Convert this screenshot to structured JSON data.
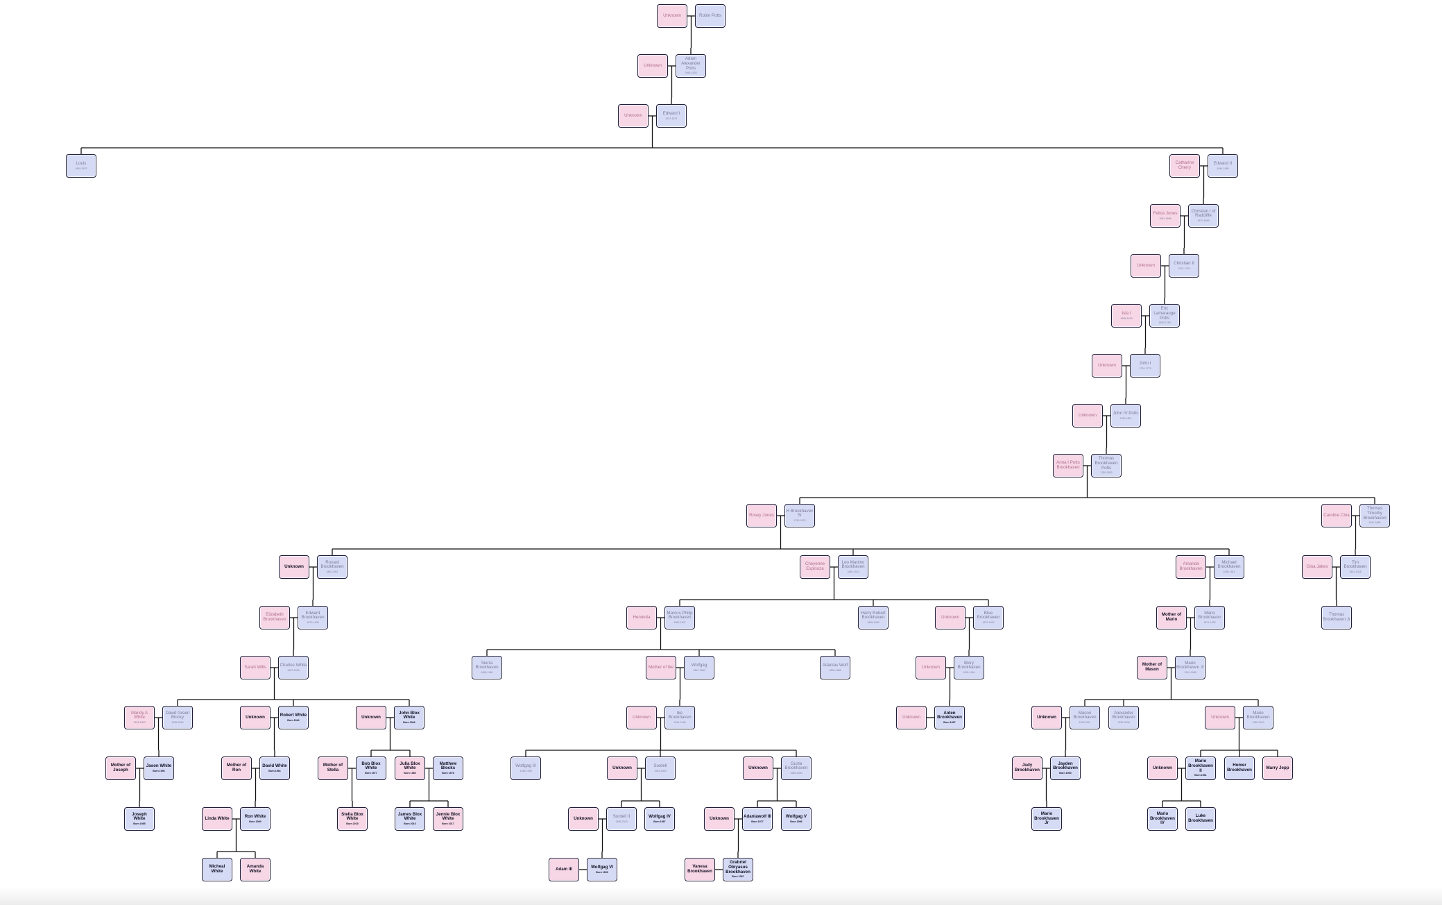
{
  "colors": {
    "female_fill": "#f7d6e6",
    "male_fill": "#d6dbf5",
    "border": "#1f1f3a",
    "line": "#111111"
  },
  "nodes": [
    {
      "id": "n1",
      "name": "Unknown",
      "dates": "",
      "sex": "f"
    },
    {
      "id": "n2",
      "name": "Robin Potts",
      "dates": "",
      "sex": "m"
    },
    {
      "id": "n3",
      "name": "Unknown",
      "dates": "",
      "sex": "f"
    },
    {
      "id": "n4",
      "name": "Adam Alexander Potts",
      "dates": "1565-1620",
      "sex": "m"
    },
    {
      "id": "n5",
      "name": "Unknown",
      "dates": "",
      "sex": "f"
    },
    {
      "id": "n6",
      "name": "Edward I",
      "dates": "1612-1671",
      "sex": "m"
    },
    {
      "id": "n7",
      "name": "Louis",
      "dates": "1645-1670",
      "sex": "m"
    },
    {
      "id": "n8",
      "name": "Catharine Cherry",
      "dates": "",
      "sex": "f"
    },
    {
      "id": "n9",
      "name": "Edward II",
      "dates": "1644-1680",
      "sex": "m"
    },
    {
      "id": "n10",
      "name": "Felice Jones",
      "dates": "1661-1698",
      "sex": "f"
    },
    {
      "id": "n11",
      "name": "Christian I of Radcliffe",
      "dates": "1670-1699",
      "sex": "m"
    },
    {
      "id": "n12",
      "name": "Unknown",
      "dates": "",
      "sex": "f"
    },
    {
      "id": "n13",
      "name": "Christian II",
      "dates": "1674-1720",
      "sex": "m"
    },
    {
      "id": "n14",
      "name": "Isla I",
      "dates": "1695-1675",
      "sex": "f"
    },
    {
      "id": "n15",
      "name": "Eric Lamarauge Potts",
      "dates": "1690-1750",
      "sex": "m"
    },
    {
      "id": "n16",
      "name": "Unknown",
      "dates": "",
      "sex": "f"
    },
    {
      "id": "n17",
      "name": "John I",
      "dates": "1720-1775",
      "sex": "m"
    },
    {
      "id": "n18",
      "name": "Unknown",
      "dates": "",
      "sex": "f"
    },
    {
      "id": "n19",
      "name": "John IV Potts",
      "dates": "1750-1801",
      "sex": "m"
    },
    {
      "id": "n20",
      "name": "Anna I Potts Brookhaven",
      "dates": "",
      "sex": "f"
    },
    {
      "id": "n21",
      "name": "Thomas Brookhaven Potts",
      "dates": "1785-1853",
      "sex": "m"
    },
    {
      "id": "n22",
      "name": "Rosey Jones",
      "dates": "",
      "sex": "f"
    },
    {
      "id": "n23",
      "name": "H Brookhaven Sr",
      "dates": "1790-1870",
      "sex": "m"
    },
    {
      "id": "n24",
      "name": "Caroline Cina",
      "dates": "",
      "sex": "f"
    },
    {
      "id": "n25",
      "name": "Thomas Timothy Brookhaven",
      "dates": "1811-1880",
      "sex": "m"
    },
    {
      "id": "n26",
      "name": "Unknown",
      "dates": "",
      "sex": "f",
      "bold": true
    },
    {
      "id": "n27",
      "name": "Ronald Brookhaven",
      "dates": "1840-1901",
      "sex": "m"
    },
    {
      "id": "n28",
      "name": "Cheyenne Espinoza",
      "dates": "",
      "sex": "f"
    },
    {
      "id": "n29",
      "name": "Leo Martino Brookhaven",
      "dates": "1830-1912",
      "sex": "m"
    },
    {
      "id": "n30",
      "name": "Amanda Brookhaven",
      "dates": "",
      "sex": "f"
    },
    {
      "id": "n31",
      "name": "Michael Brookhaven",
      "dates": "1836-1911",
      "sex": "m"
    },
    {
      "id": "n32",
      "name": "Gina Jakes",
      "dates": "",
      "sex": "f"
    },
    {
      "id": "n33",
      "name": "Tim Brookhaven",
      "dates": "1841-1918",
      "sex": "m"
    },
    {
      "id": "n34",
      "name": "Elizabeth Brookhaven",
      "dates": "",
      "sex": "f"
    },
    {
      "id": "n35",
      "name": "Edward Brookhaven",
      "dates": "1870-1935",
      "sex": "m"
    },
    {
      "id": "n36",
      "name": "Henrietta",
      "dates": "",
      "sex": "f"
    },
    {
      "id": "n37",
      "name": "Marcus Philip Brookhaven",
      "dates": "1860-1927",
      "sex": "m"
    },
    {
      "id": "n38",
      "name": "Harry Robert Brookhaven",
      "dates": "1865-1930",
      "sex": "m"
    },
    {
      "id": "n39",
      "name": "Unknown",
      "dates": "",
      "sex": "f"
    },
    {
      "id": "n40",
      "name": "Blue Brookhaven",
      "dates": "1870-1942",
      "sex": "m"
    },
    {
      "id": "n41",
      "name": "Mother of Mario",
      "dates": "",
      "sex": "f",
      "bold": true
    },
    {
      "id": "n42",
      "name": "Mario Brookhaven",
      "dates": "1871-1933",
      "sex": "m"
    },
    {
      "id": "n43",
      "name": "Thomas Brookhaven Jr",
      "dates": "",
      "sex": "m"
    },
    {
      "id": "n44",
      "name": "Sarah Wills",
      "dates": "",
      "sex": "f"
    },
    {
      "id": "n45",
      "name": "Charles White",
      "dates": "1910-1995",
      "sex": "m"
    },
    {
      "id": "n46",
      "name": "Sierra Brookhaven",
      "dates": "1895-1960",
      "sex": "m"
    },
    {
      "id": "n47",
      "name": "Mother of Ike",
      "dates": "",
      "sex": "f"
    },
    {
      "id": "n48",
      "name": "Wolfgag",
      "dates": "1897-1980",
      "sex": "m"
    },
    {
      "id": "n49",
      "name": "Adanias Wolf",
      "dates": "1899-1988",
      "sex": "m"
    },
    {
      "id": "n50",
      "name": "Unknown",
      "dates": "",
      "sex": "f"
    },
    {
      "id": "n51",
      "name": "Blory Brookhaven",
      "dates": "1900-1964",
      "sex": "m"
    },
    {
      "id": "n52",
      "name": "Mother of Mason",
      "dates": "",
      "sex": "f",
      "bold": true
    },
    {
      "id": "n53",
      "name": "Mario Brookhaven Jr",
      "dates": "1901-1965",
      "sex": "m"
    },
    {
      "id": "n54",
      "name": "Mandy A White",
      "dates": "1934-2000",
      "sex": "f"
    },
    {
      "id": "n55",
      "name": "David Green Blocky",
      "dates": "1935-2016",
      "sex": "m"
    },
    {
      "id": "n56",
      "name": "Unknown",
      "dates": "",
      "sex": "f",
      "bold": true
    },
    {
      "id": "n57",
      "name": "Robert White",
      "dates": "Born 1942",
      "sex": "m",
      "bold": true
    },
    {
      "id": "n58",
      "name": "Unknown",
      "dates": "",
      "sex": "f",
      "bold": true
    },
    {
      "id": "n59",
      "name": "John Blox White",
      "dates": "Born 1946",
      "sex": "m",
      "bold": true
    },
    {
      "id": "n60",
      "name": "Unknown",
      "dates": "",
      "sex": "f"
    },
    {
      "id": "n61",
      "name": "Ike Brookhaven",
      "dates": "1924-1990",
      "sex": "m"
    },
    {
      "id": "n62",
      "name": "Unknown",
      "dates": "",
      "sex": "f"
    },
    {
      "id": "n63",
      "name": "Aiden Brookhaven",
      "dates": "Born 1957",
      "sex": "m",
      "bold": true
    },
    {
      "id": "n64",
      "name": "Unknown",
      "dates": "",
      "sex": "f",
      "bold": true
    },
    {
      "id": "n65",
      "name": "Mason Brookhaven",
      "dates": "1930-2011",
      "sex": "m"
    },
    {
      "id": "n66",
      "name": "Alexander Brookhaven",
      "dates": "1932-2008",
      "sex": "m"
    },
    {
      "id": "n67",
      "name": "Unknown",
      "dates": "",
      "sex": "f"
    },
    {
      "id": "n68",
      "name": "Mario Brookhaven",
      "dates": "1936-2010",
      "sex": "m"
    },
    {
      "id": "n69",
      "name": "Mother of Joseph",
      "dates": "",
      "sex": "f",
      "bold": true
    },
    {
      "id": "n70",
      "name": "Jason White",
      "dates": "Born 1956",
      "sex": "m",
      "bold": true
    },
    {
      "id": "n71",
      "name": "Mother of Ron",
      "dates": "",
      "sex": "f",
      "bold": true
    },
    {
      "id": "n72",
      "name": "David White",
      "dates": "Born 1966",
      "sex": "m",
      "bold": true
    },
    {
      "id": "n73",
      "name": "Mother of Stella",
      "dates": "",
      "sex": "f",
      "bold": true
    },
    {
      "id": "n74",
      "name": "Bob Blox White",
      "dates": "Born 1977",
      "sex": "m",
      "bold": true
    },
    {
      "id": "n75",
      "name": "Julia Blox White",
      "dates": "Born 1980",
      "sex": "f",
      "bold": true
    },
    {
      "id": "n76",
      "name": "Matthew Blocks",
      "dates": "Born 1978",
      "sex": "m",
      "bold": true
    },
    {
      "id": "n77",
      "name": "Wolfgag III",
      "dates": "1945-1998",
      "sex": "m"
    },
    {
      "id": "n78",
      "name": "Unknown",
      "dates": "",
      "sex": "f",
      "bold": true
    },
    {
      "id": "n79",
      "name": "Sordell",
      "dates": "1949-2009",
      "sex": "m"
    },
    {
      "id": "n80",
      "name": "Unknown",
      "dates": "",
      "sex": "f",
      "bold": true
    },
    {
      "id": "n81",
      "name": "Gusta Brookhaven",
      "dates": "1950-2020",
      "sex": "m"
    },
    {
      "id": "n82",
      "name": "Judy Brookhaven",
      "dates": "",
      "sex": "f",
      "bold": true
    },
    {
      "id": "n83",
      "name": "Jayden Brookhaven",
      "dates": "Born 1960",
      "sex": "m",
      "bold": true
    },
    {
      "id": "n84",
      "name": "Unknown",
      "dates": "",
      "sex": "f",
      "bold": true
    },
    {
      "id": "n85",
      "name": "Mario Brookhaven II",
      "dates": "Born 1961",
      "sex": "m",
      "bold": true
    },
    {
      "id": "n86",
      "name": "Homer Brookhaven",
      "dates": "",
      "sex": "m",
      "bold": true
    },
    {
      "id": "n87",
      "name": "Marry Jepp",
      "dates": "",
      "sex": "f",
      "bold": true
    },
    {
      "id": "n88",
      "name": "Joseph White",
      "dates": "Born 1985",
      "sex": "m",
      "bold": true
    },
    {
      "id": "n89",
      "name": "Linda White",
      "dates": "",
      "sex": "f",
      "bold": true
    },
    {
      "id": "n90",
      "name": "Ron White",
      "dates": "Born 1990",
      "sex": "m",
      "bold": true
    },
    {
      "id": "n91",
      "name": "Stella Blox White",
      "dates": "Born 2015",
      "sex": "f",
      "bold": true
    },
    {
      "id": "n92",
      "name": "James Blox White",
      "dates": "Born 2010",
      "sex": "m",
      "bold": true
    },
    {
      "id": "n93",
      "name": "Jennie Blox White",
      "dates": "Born 2017",
      "sex": "f",
      "bold": true
    },
    {
      "id": "n94",
      "name": "Unknown",
      "dates": "",
      "sex": "f",
      "bold": true
    },
    {
      "id": "n95",
      "name": "Sordell II",
      "dates": "1985-2020",
      "sex": "m"
    },
    {
      "id": "n96",
      "name": "Wolfgag IV",
      "dates": "Born 1987",
      "sex": "m",
      "bold": true
    },
    {
      "id": "n97",
      "name": "Unknown",
      "dates": "",
      "sex": "f",
      "bold": true
    },
    {
      "id": "n98",
      "name": "Adanlawolf III",
      "dates": "Born 1977",
      "sex": "m",
      "bold": true
    },
    {
      "id": "n99",
      "name": "Wolfgag V",
      "dates": "Born 1996",
      "sex": "m",
      "bold": true
    },
    {
      "id": "n100",
      "name": "Mario Brookhaven Jr",
      "dates": "",
      "sex": "m",
      "bold": true
    },
    {
      "id": "n101",
      "name": "Mario Brookhaven IV",
      "dates": "",
      "sex": "m",
      "bold": true
    },
    {
      "id": "n102",
      "name": "Luke Brookhaven",
      "dates": "",
      "sex": "m",
      "bold": true
    },
    {
      "id": "n103",
      "name": "Micheal White",
      "dates": "",
      "sex": "m",
      "bold": true
    },
    {
      "id": "n104",
      "name": "Amanda White",
      "dates": "",
      "sex": "f",
      "bold": true
    },
    {
      "id": "n105",
      "name": "Adam III",
      "dates": "",
      "sex": "f",
      "bold": true
    },
    {
      "id": "n106",
      "name": "Wolfgag VI",
      "dates": "Born 1999",
      "sex": "m",
      "bold": true
    },
    {
      "id": "n107",
      "name": "Vanesa Brookhaven",
      "dates": "",
      "sex": "f",
      "bold": true
    },
    {
      "id": "n108",
      "name": "Grabriel Obiyasus Brookhaven",
      "dates": "Born 1997",
      "sex": "m",
      "bold": true
    }
  ]
}
